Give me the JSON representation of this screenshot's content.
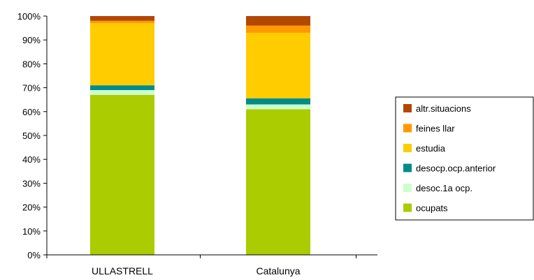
{
  "chart_data": {
    "type": "bar",
    "stacked": true,
    "percent": true,
    "categories": [
      "ULLASTRELL",
      "Catalunya"
    ],
    "ylim": [
      0,
      100
    ],
    "yticks": [
      "0%",
      "10%",
      "20%",
      "30%",
      "40%",
      "50%",
      "60%",
      "70%",
      "80%",
      "90%",
      "100%"
    ],
    "legend_position": "right",
    "series": [
      {
        "name": "ocupats",
        "color": "#aacc00",
        "values": [
          67,
          61
        ]
      },
      {
        "name": "desoc.1a ocp.",
        "color": "#ccffcc",
        "values": [
          2,
          2
        ]
      },
      {
        "name": "desocp.ocp.anterior",
        "color": "#008b8b",
        "values": [
          2,
          2.5
        ]
      },
      {
        "name": "estudia",
        "color": "#ffcc00",
        "values": [
          26,
          27.5
        ]
      },
      {
        "name": "feines llar",
        "color": "#ff9900",
        "values": [
          1,
          3
        ]
      },
      {
        "name": "altr.situacions",
        "color": "#b34700",
        "values": [
          2,
          4
        ]
      }
    ]
  }
}
